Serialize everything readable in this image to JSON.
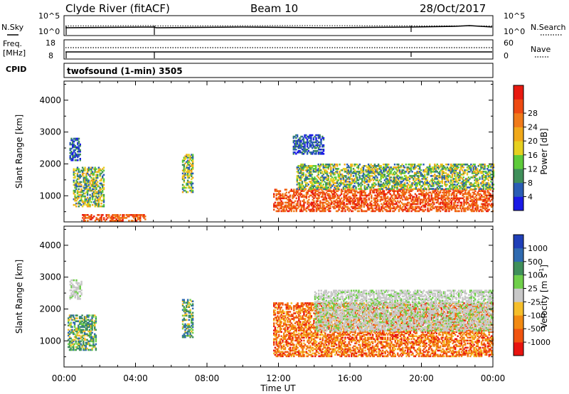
{
  "header": {
    "station": "Clyde River (fitACF)",
    "beam": "Beam 10",
    "date": "28/Oct/2017"
  },
  "status_panel": {
    "nsky_label": "N.Sky",
    "nsearch_label": "N.Search",
    "noise_ticks_left": [
      "10^5",
      "10^0"
    ],
    "noise_ticks_right": [
      "10^5",
      "10^0"
    ],
    "freq_label_1": "Freq.",
    "freq_label_2": "[MHz]",
    "freq_ticks": [
      "18",
      "8"
    ],
    "nave_label": "Nave",
    "nave_ticks": [
      "60",
      "0"
    ],
    "cpid_label": "CPID",
    "cpid_text": "twofsound (1-min) 3505"
  },
  "colors": {
    "power": [
      "#1a1ae6",
      "#2a5db5",
      "#3f8f5a",
      "#5ecb3a",
      "#e6d020",
      "#f0a81a",
      "#f07a1a",
      "#ee4a12",
      "#e81a10"
    ],
    "velocity": [
      "#e8130f",
      "#f0540f",
      "#f28a12",
      "#f5be2a",
      "#c8c8c8",
      "#6fcf4a",
      "#3f8f5a",
      "#2f6ab0",
      "#1f3fb8"
    ]
  },
  "chart_data": [
    {
      "type": "heatmap",
      "name": "power",
      "ylabel": "Slant Range [km]",
      "xlabel": "Time UT",
      "x_ticks": [
        "00:00",
        "04:00",
        "08:00",
        "12:00",
        "16:00",
        "20:00",
        "00:00"
      ],
      "y_ticks": [
        1000,
        2000,
        3000,
        4000
      ],
      "ylim": [
        180,
        4600
      ],
      "xlim_hours": [
        0,
        24
      ],
      "colorbar_label": "Power [dB]",
      "colorbar_ticks": [
        "4",
        "8",
        "12",
        "16",
        "20",
        "24",
        "28"
      ],
      "features": [
        {
          "t": [
            0.5,
            2.2
          ],
          "r": [
            650,
            1900
          ],
          "level": "mid"
        },
        {
          "t": [
            0.3,
            0.9
          ],
          "r": [
            2100,
            2800
          ],
          "level": "weak"
        },
        {
          "t": [
            1.0,
            4.5
          ],
          "r": [
            200,
            400
          ],
          "level": "strong"
        },
        {
          "t": [
            6.6,
            7.2
          ],
          "r": [
            1100,
            2300
          ],
          "level": "mid"
        },
        {
          "t": [
            11.7,
            24.0
          ],
          "r": [
            500,
            1200
          ],
          "level": "strong"
        },
        {
          "t": [
            13.0,
            24.0
          ],
          "r": [
            1200,
            2000
          ],
          "level": "mid"
        },
        {
          "t": [
            12.8,
            14.5
          ],
          "r": [
            2300,
            2900
          ],
          "level": "weak"
        }
      ]
    },
    {
      "type": "heatmap",
      "name": "velocity",
      "ylabel": "Slant Range [km]",
      "xlabel": "Time UT",
      "x_ticks": [
        "00:00",
        "04:00",
        "08:00",
        "12:00",
        "16:00",
        "20:00",
        "00:00"
      ],
      "y_ticks": [
        1000,
        2000,
        3000,
        4000
      ],
      "ylim": [
        180,
        4600
      ],
      "xlim_hours": [
        0,
        24
      ],
      "colorbar_label": "Velocity [m s-1]",
      "colorbar_label_main": "Velocity",
      "colorbar_label_units": "[m s",
      "colorbar_label_exp": "-1",
      "colorbar_label_close": "]",
      "colorbar_ticks": [
        "1000",
        "500",
        "100",
        "25",
        "-25",
        "-100",
        "-500",
        "-1000"
      ],
      "features": [
        {
          "t": [
            0.2,
            1.8
          ],
          "r": [
            700,
            1800
          ],
          "level": "pos"
        },
        {
          "t": [
            0.3,
            1.0
          ],
          "r": [
            2300,
            2900
          ],
          "level": "zero"
        },
        {
          "t": [
            6.6,
            7.2
          ],
          "r": [
            1100,
            2300
          ],
          "level": "pos"
        },
        {
          "t": [
            11.7,
            24.0
          ],
          "r": [
            500,
            2200
          ],
          "level": "neg"
        },
        {
          "t": [
            14.0,
            24.0
          ],
          "r": [
            1300,
            2600
          ],
          "level": "zero"
        }
      ]
    }
  ],
  "time_axis_label": "Time UT"
}
